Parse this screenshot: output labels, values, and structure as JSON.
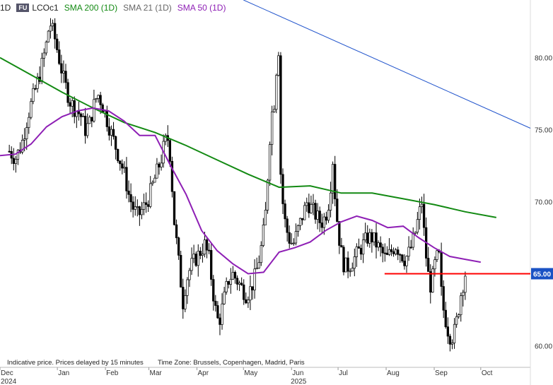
{
  "header": {
    "interval": "1D",
    "badge": "FU",
    "symbol": "LCOc1",
    "sma200": "SMA 200 (1D)",
    "sma21": "SMA 21 (1D)",
    "sma50": "SMA 50 (1D)"
  },
  "footer": {
    "disclaimer": "Indicative price. Prices delayed by 15 minutes",
    "timezone": "Time Zone: Brussels, Copenhagen, Madrid, Paris"
  },
  "colors": {
    "sma200": "#138a13",
    "sma50": "#8e1fb5",
    "trendline": "#2255cc",
    "support": "#ff0000",
    "price_tag_bg": "#1a52c4"
  },
  "chart_data": {
    "type": "candlestick",
    "ylim": [
      58.5,
      84
    ],
    "yticks": [
      {
        "value": 60,
        "label": "60.00"
      },
      {
        "value": 65,
        "label": "65.00"
      },
      {
        "value": 70,
        "label": "70.00"
      },
      {
        "value": 75,
        "label": "75.00"
      },
      {
        "value": 80,
        "label": "80.00"
      }
    ],
    "xticks": [
      {
        "label": "Dec",
        "day": 0
      },
      {
        "label": "Jan",
        "day": 37
      },
      {
        "label": "Feb",
        "day": 68
      },
      {
        "label": "Mar",
        "day": 96
      },
      {
        "label": "Apr",
        "day": 127
      },
      {
        "label": "May",
        "day": 157
      },
      {
        "label": "Jun",
        "day": 188
      },
      {
        "label": "Jul",
        "day": 218
      },
      {
        "label": "Aug",
        "day": 249
      },
      {
        "label": "Sep",
        "day": 280
      },
      {
        "label": "Oct",
        "day": 310
      }
    ],
    "xlim_days": [
      0,
      342
    ],
    "year_labels": [
      {
        "label": "2024",
        "day": 0
      },
      {
        "label": "2025",
        "day": 187
      }
    ],
    "price_path": [
      [
        6,
        73.5
      ],
      [
        10,
        73.0
      ],
      [
        14,
        74.0
      ],
      [
        18,
        76.0
      ],
      [
        22,
        77.5
      ],
      [
        26,
        79.0
      ],
      [
        30,
        81.0
      ],
      [
        32,
        82.5
      ],
      [
        35,
        81.5
      ],
      [
        38,
        80.0
      ],
      [
        41,
        78.5
      ],
      [
        45,
        77.0
      ],
      [
        48,
        76.5
      ],
      [
        52,
        76.0
      ],
      [
        55,
        75.0
      ],
      [
        58,
        75.5
      ],
      [
        60,
        76.5
      ],
      [
        63,
        77.5
      ],
      [
        65,
        77.0
      ],
      [
        68,
        76.0
      ],
      [
        71,
        75.0
      ],
      [
        74,
        74.0
      ],
      [
        77,
        73.0
      ],
      [
        80,
        72.0
      ],
      [
        83,
        70.5
      ],
      [
        86,
        69.5
      ],
      [
        89,
        69.0
      ],
      [
        92,
        69.5
      ],
      [
        95,
        70.0
      ],
      [
        98,
        71.0
      ],
      [
        101,
        72.0
      ],
      [
        104,
        73.0
      ],
      [
        106,
        74.0
      ],
      [
        108,
        74.5
      ],
      [
        110,
        73.0
      ],
      [
        112,
        69.0
      ],
      [
        114,
        67.0
      ],
      [
        116,
        65.0
      ],
      [
        118,
        63.0
      ],
      [
        120,
        64.5
      ],
      [
        123,
        65.5
      ],
      [
        126,
        66.0
      ],
      [
        129,
        66.5
      ],
      [
        132,
        67.0
      ],
      [
        135,
        66.0
      ],
      [
        137,
        64.0
      ],
      [
        139,
        62.5
      ],
      [
        141,
        61.5
      ],
      [
        143,
        62.5
      ],
      [
        145,
        63.5
      ],
      [
        147,
        64.5
      ],
      [
        150,
        65.0
      ],
      [
        153,
        64.5
      ],
      [
        156,
        64.0
      ],
      [
        159,
        63.5
      ],
      [
        162,
        64.0
      ],
      [
        165,
        65.0
      ],
      [
        168,
        66.5
      ],
      [
        170,
        68.0
      ],
      [
        172,
        70.0
      ],
      [
        173,
        73.0
      ],
      [
        175,
        76.0
      ],
      [
        177,
        77.0
      ],
      [
        178,
        79.0
      ],
      [
        180,
        81.0
      ],
      [
        181,
        72.0
      ],
      [
        183,
        69.0
      ],
      [
        186,
        67.5
      ],
      [
        189,
        67.0
      ],
      [
        192,
        68.0
      ],
      [
        195,
        69.0
      ],
      [
        198,
        70.0
      ],
      [
        201,
        69.5
      ],
      [
        204,
        69.0
      ],
      [
        207,
        68.5
      ],
      [
        210,
        69.0
      ],
      [
        212,
        70.0
      ],
      [
        214,
        72.0
      ],
      [
        215,
        73.5
      ],
      [
        216,
        70.5
      ],
      [
        218,
        68.0
      ],
      [
        220,
        66.5
      ],
      [
        222,
        65.5
      ],
      [
        225,
        65.5
      ],
      [
        228,
        66.0
      ],
      [
        231,
        66.5
      ],
      [
        234,
        67.0
      ],
      [
        237,
        67.5
      ],
      [
        240,
        67.5
      ],
      [
        243,
        67.0
      ],
      [
        246,
        66.5
      ],
      [
        249,
        66.0
      ],
      [
        252,
        66.5
      ],
      [
        255,
        67.0
      ],
      [
        258,
        66.5
      ],
      [
        261,
        66.0
      ],
      [
        264,
        66.5
      ],
      [
        267,
        67.5
      ],
      [
        270,
        69.0
      ],
      [
        272,
        70.0
      ],
      [
        274,
        67.0
      ],
      [
        276,
        65.0
      ],
      [
        278,
        64.0
      ],
      [
        280,
        65.5
      ],
      [
        283,
        66.5
      ],
      [
        285,
        63.0
      ],
      [
        287,
        62.0
      ],
      [
        289,
        61.0
      ],
      [
        291,
        60.5
      ],
      [
        293,
        61.0
      ],
      [
        295,
        62.0
      ],
      [
        297,
        63.5
      ],
      [
        299,
        64.5
      ],
      [
        300,
        65.0
      ]
    ],
    "sma200": [
      [
        0,
        80.0
      ],
      [
        20,
        78.8
      ],
      [
        40,
        77.6
      ],
      [
        60,
        76.5
      ],
      [
        80,
        75.5
      ],
      [
        100,
        74.8
      ],
      [
        120,
        73.9
      ],
      [
        140,
        72.9
      ],
      [
        160,
        71.9
      ],
      [
        180,
        71.0
      ],
      [
        200,
        71.1
      ],
      [
        220,
        70.6
      ],
      [
        240,
        70.6
      ],
      [
        260,
        70.2
      ],
      [
        280,
        69.8
      ],
      [
        300,
        69.3
      ],
      [
        320,
        68.9
      ]
    ],
    "sma50": [
      [
        0,
        73.2
      ],
      [
        10,
        73.3
      ],
      [
        20,
        74.0
      ],
      [
        30,
        75.2
      ],
      [
        40,
        75.9
      ],
      [
        50,
        76.3
      ],
      [
        60,
        76.5
      ],
      [
        70,
        76.3
      ],
      [
        80,
        75.6
      ],
      [
        90,
        74.6
      ],
      [
        100,
        74.6
      ],
      [
        110,
        72.5
      ],
      [
        120,
        70.5
      ],
      [
        130,
        68.0
      ],
      [
        140,
        66.6
      ],
      [
        150,
        65.7
      ],
      [
        160,
        65.0
      ],
      [
        170,
        65.1
      ],
      [
        180,
        66.5
      ],
      [
        190,
        66.8
      ],
      [
        200,
        67.2
      ],
      [
        210,
        68.0
      ],
      [
        220,
        68.6
      ],
      [
        230,
        69.0
      ],
      [
        240,
        68.7
      ],
      [
        250,
        68.2
      ],
      [
        260,
        68.3
      ],
      [
        270,
        67.5
      ],
      [
        280,
        66.8
      ],
      [
        290,
        66.2
      ],
      [
        300,
        66.0
      ],
      [
        310,
        65.8
      ]
    ],
    "sma200_full": "see sma200",
    "support_line": {
      "value": 65.0,
      "from_day": 248,
      "to_day": 342,
      "label": "65.00"
    },
    "trend_line": {
      "from": [
        157,
        84.0
      ],
      "to": [
        342,
        75.1
      ]
    },
    "grid": false,
    "legend_position": "top"
  }
}
